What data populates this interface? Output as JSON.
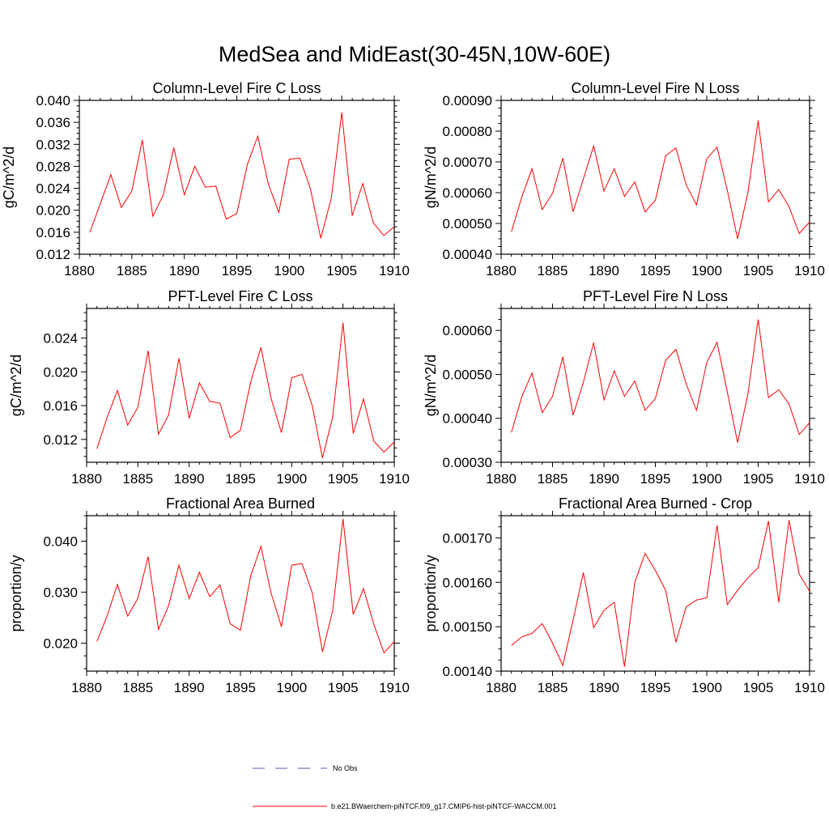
{
  "page_title": "MedSea and MidEast(30-45N,10W-60E)",
  "colors": {
    "model_line": "#ff0000",
    "obs_line": "#5a5ab4",
    "axis": "#000000"
  },
  "legend": {
    "obs_label": "No Obs",
    "model_label": "b.e21.BWaerchem-piNTCF.f09_g17.CMIP6-hist-piNTCF-WACCM.001"
  },
  "chart_data": [
    {
      "type": "line",
      "title": "Column-Level Fire C Loss",
      "xlabel": "",
      "ylabel": "gC/m^2/d",
      "xlim": [
        1880,
        1910
      ],
      "ylim": [
        0.012,
        0.04
      ],
      "xticks": [
        1880,
        1885,
        1890,
        1895,
        1900,
        1905,
        1910
      ],
      "xtick_labels": [
        "1880",
        "1885",
        "1890",
        "1895",
        "1900",
        "1905",
        "1910"
      ],
      "yticks": [
        0.012,
        0.016,
        0.02,
        0.024,
        0.028,
        0.032,
        0.036,
        0.04
      ],
      "ytick_labels": [
        "0.012",
        "0.016",
        "0.020",
        "0.024",
        "0.028",
        "0.032",
        "0.036",
        "0.040"
      ],
      "grid": false,
      "x": [
        1881,
        1882,
        1883,
        1884,
        1885,
        1886,
        1887,
        1888,
        1889,
        1890,
        1891,
        1892,
        1893,
        1894,
        1895,
        1896,
        1897,
        1898,
        1899,
        1900,
        1901,
        1902,
        1903,
        1904,
        1905,
        1906,
        1907,
        1908,
        1909,
        1910
      ],
      "series": [
        {
          "values": [
            0.016,
            0.0212,
            0.0265,
            0.0205,
            0.0235,
            0.0328,
            0.0189,
            0.0228,
            0.0314,
            0.0228,
            0.028,
            0.0242,
            0.0244,
            0.0184,
            0.0194,
            0.0283,
            0.0335,
            0.0248,
            0.0196,
            0.0293,
            0.0295,
            0.024,
            0.0149,
            0.0222,
            0.0378,
            0.019,
            0.0249,
            0.0177,
            0.0154,
            0.017
          ]
        }
      ]
    },
    {
      "type": "line",
      "title": "Column-Level Fire N Loss",
      "xlabel": "",
      "ylabel": "gN/m^2/d",
      "xlim": [
        1880,
        1910
      ],
      "ylim": [
        0.0004,
        0.0009
      ],
      "xticks": [
        1880,
        1885,
        1890,
        1895,
        1900,
        1905,
        1910
      ],
      "xtick_labels": [
        "1880",
        "1885",
        "1890",
        "1895",
        "1900",
        "1905",
        "1910"
      ],
      "yticks": [
        0.0004,
        0.0005,
        0.0006,
        0.0007,
        0.0008,
        0.0009
      ],
      "ytick_labels": [
        "0.00040",
        "0.00050",
        "0.00060",
        "0.00070",
        "0.00080",
        "0.00090"
      ],
      "grid": false,
      "x": [
        1881,
        1882,
        1883,
        1884,
        1885,
        1886,
        1887,
        1888,
        1889,
        1890,
        1891,
        1892,
        1893,
        1894,
        1895,
        1896,
        1897,
        1898,
        1899,
        1900,
        1901,
        1902,
        1903,
        1904,
        1905,
        1906,
        1907,
        1908,
        1909,
        1910
      ],
      "series": [
        {
          "values": [
            0.000473,
            0.000585,
            0.000678,
            0.000545,
            0.000598,
            0.000712,
            0.000538,
            0.000645,
            0.000752,
            0.000605,
            0.000678,
            0.000588,
            0.000635,
            0.000538,
            0.000575,
            0.00072,
            0.000745,
            0.000625,
            0.00056,
            0.00071,
            0.000748,
            0.000608,
            0.00045,
            0.0006,
            0.000835,
            0.00057,
            0.00061,
            0.000555,
            0.000467,
            0.000505
          ]
        }
      ]
    },
    {
      "type": "line",
      "title": "PFT-Level Fire C Loss",
      "xlabel": "",
      "ylabel": "gC/m^2/d",
      "xlim": [
        1880,
        1910
      ],
      "ylim": [
        0.0093,
        0.0275
      ],
      "xticks": [
        1880,
        1885,
        1890,
        1895,
        1900,
        1905,
        1910
      ],
      "xtick_labels": [
        "1880",
        "1885",
        "1890",
        "1895",
        "1900",
        "1905",
        "1910"
      ],
      "yticks": [
        0.012,
        0.016,
        0.02,
        0.024
      ],
      "ytick_labels": [
        "0.012",
        "0.016",
        "0.020",
        "0.024"
      ],
      "grid": false,
      "x": [
        1881,
        1882,
        1883,
        1884,
        1885,
        1886,
        1887,
        1888,
        1889,
        1890,
        1891,
        1892,
        1893,
        1894,
        1895,
        1896,
        1897,
        1898,
        1899,
        1900,
        1901,
        1902,
        1903,
        1904,
        1905,
        1906,
        1907,
        1908,
        1909,
        1910
      ],
      "series": [
        {
          "values": [
            0.0109,
            0.0146,
            0.0178,
            0.0137,
            0.0158,
            0.0225,
            0.0126,
            0.0149,
            0.0216,
            0.0145,
            0.0187,
            0.0165,
            0.0163,
            0.0122,
            0.0131,
            0.0188,
            0.0229,
            0.0168,
            0.0128,
            0.0193,
            0.0197,
            0.016,
            0.0098,
            0.0147,
            0.0258,
            0.0127,
            0.0168,
            0.0118,
            0.0105,
            0.0117
          ]
        }
      ]
    },
    {
      "type": "line",
      "title": "PFT-Level Fire N Loss",
      "xlabel": "",
      "ylabel": "gN/m^2/d",
      "xlim": [
        1880,
        1910
      ],
      "ylim": [
        0.0003,
        0.00065
      ],
      "xticks": [
        1880,
        1885,
        1890,
        1895,
        1900,
        1905,
        1910
      ],
      "xtick_labels": [
        "1880",
        "1885",
        "1890",
        "1895",
        "1900",
        "1905",
        "1910"
      ],
      "yticks": [
        0.0003,
        0.0004,
        0.0005,
        0.0006
      ],
      "ytick_labels": [
        "0.00030",
        "0.00040",
        "0.00050",
        "0.00060"
      ],
      "grid": false,
      "x": [
        1881,
        1882,
        1883,
        1884,
        1885,
        1886,
        1887,
        1888,
        1889,
        1890,
        1891,
        1892,
        1893,
        1894,
        1895,
        1896,
        1897,
        1898,
        1899,
        1900,
        1901,
        1902,
        1903,
        1904,
        1905,
        1906,
        1907,
        1908,
        1909,
        1910
      ],
      "series": [
        {
          "values": [
            0.000368,
            0.000448,
            0.000503,
            0.000413,
            0.00045,
            0.00054,
            0.000407,
            0.000482,
            0.000572,
            0.000442,
            0.000508,
            0.00045,
            0.000485,
            0.000418,
            0.000445,
            0.000532,
            0.000557,
            0.000478,
            0.000418,
            0.000527,
            0.000573,
            0.00046,
            0.000345,
            0.000455,
            0.000625,
            0.000447,
            0.000465,
            0.000433,
            0.000363,
            0.00039
          ]
        }
      ]
    },
    {
      "type": "line",
      "title": "Fractional Area Burned",
      "xlabel": "",
      "ylabel": "proportion/y",
      "xlim": [
        1880,
        1910
      ],
      "ylim": [
        0.0145,
        0.045
      ],
      "xticks": [
        1880,
        1885,
        1890,
        1895,
        1900,
        1905,
        1910
      ],
      "xtick_labels": [
        "1880",
        "1885",
        "1890",
        "1895",
        "1900",
        "1905",
        "1910"
      ],
      "yticks": [
        0.02,
        0.03,
        0.04
      ],
      "ytick_labels": [
        "0.020",
        "0.030",
        "0.040"
      ],
      "grid": false,
      "x": [
        1881,
        1882,
        1883,
        1884,
        1885,
        1886,
        1887,
        1888,
        1889,
        1890,
        1891,
        1892,
        1893,
        1894,
        1895,
        1896,
        1897,
        1898,
        1899,
        1900,
        1901,
        1902,
        1903,
        1904,
        1905,
        1906,
        1907,
        1908,
        1909,
        1910
      ],
      "series": [
        {
          "values": [
            0.0203,
            0.0253,
            0.0315,
            0.0253,
            0.0288,
            0.037,
            0.0227,
            0.0274,
            0.0353,
            0.0287,
            0.0339,
            0.0291,
            0.0314,
            0.0238,
            0.0225,
            0.0332,
            0.039,
            0.0297,
            0.0232,
            0.0353,
            0.0356,
            0.0299,
            0.0183,
            0.0264,
            0.0444,
            0.0256,
            0.0307,
            0.0237,
            0.0181,
            0.0203
          ]
        }
      ]
    },
    {
      "type": "line",
      "title": "Fractional Area Burned - Crop",
      "xlabel": "",
      "ylabel": "proportion/y",
      "xlim": [
        1880,
        1910
      ],
      "ylim": [
        0.0014,
        0.00175
      ],
      "xticks": [
        1880,
        1885,
        1890,
        1895,
        1900,
        1905,
        1910
      ],
      "xtick_labels": [
        "1880",
        "1885",
        "1890",
        "1895",
        "1900",
        "1905",
        "1910"
      ],
      "yticks": [
        0.0014,
        0.0015,
        0.0016,
        0.0017
      ],
      "ytick_labels": [
        "0.00140",
        "0.00150",
        "0.00160",
        "0.00170"
      ],
      "grid": false,
      "x": [
        1881,
        1882,
        1883,
        1884,
        1885,
        1886,
        1887,
        1888,
        1889,
        1890,
        1891,
        1892,
        1893,
        1894,
        1895,
        1896,
        1897,
        1898,
        1899,
        1900,
        1901,
        1902,
        1903,
        1904,
        1905,
        1906,
        1907,
        1908,
        1909,
        1910
      ],
      "series": [
        {
          "values": [
            0.001458,
            0.001477,
            0.001485,
            0.001507,
            0.001463,
            0.001413,
            0.001515,
            0.001622,
            0.001498,
            0.001537,
            0.001555,
            0.00141,
            0.0016,
            0.001665,
            0.001627,
            0.001582,
            0.001465,
            0.001545,
            0.00156,
            0.001565,
            0.001728,
            0.00155,
            0.001582,
            0.00161,
            0.001633,
            0.001738,
            0.001555,
            0.00174,
            0.001618,
            0.00158
          ]
        }
      ]
    }
  ]
}
